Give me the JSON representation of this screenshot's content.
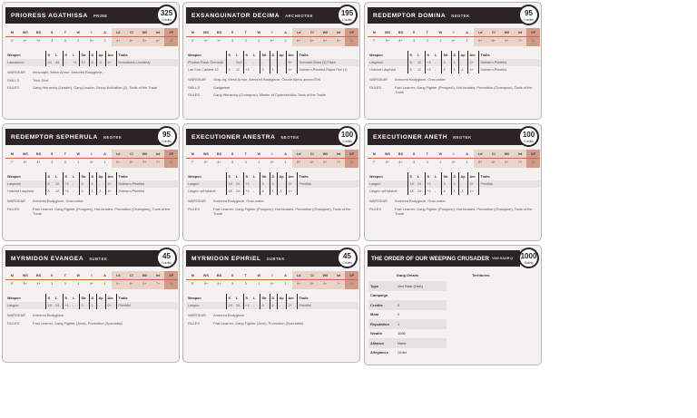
{
  "colors": {
    "header": "#2c2324",
    "stat_shade": "#ecd3c9",
    "xp_shade": "#cf9a86",
    "accent_line": "#c5684f"
  },
  "stat_labels": [
    "M",
    "WS",
    "BS",
    "S",
    "T",
    "W",
    "I",
    "A",
    "Ld",
    "Cl",
    "Wil",
    "Int",
    "XP"
  ],
  "weapon_headers": [
    "Weapon",
    "S",
    "L",
    "S",
    "L",
    "Str",
    "D",
    "Ap",
    "Am",
    "Traits"
  ],
  "credits_label": "Credits",
  "fighters": [
    {
      "name": "PRIORESS AGATHISSA",
      "type": "PRIME",
      "credits": "325",
      "stats": [
        "4\"",
        "4+",
        "3+",
        "3",
        "3",
        "2",
        "5+",
        "2",
        "4+",
        "5+",
        "5+",
        "4+",
        "0"
      ],
      "weapons": [
        [
          "Lascannon",
          "24",
          "48",
          "-",
          "+1",
          "10",
          "3",
          "-3",
          "4+",
          "Knockback,Unwieldy"
        ]
      ],
      "info": [
        {
          "k": "WARGEAR",
          "v": "Infra-sight, Mesh Armor, Armored Bodyglove,"
        },
        {
          "k": "SKILLS",
          "v": "Trick Shot"
        },
        {
          "k": "RULES",
          "v": "Gang Hierarchy (Leader), Gang Leader, Group Activation (2), Tools of the Trade"
        }
      ]
    },
    {
      "name": "EXSANGUINATOR DECIMA",
      "type": "ARCHEOTEK",
      "credits": "195",
      "stats": [
        "4\"",
        "4+",
        "3+",
        "3",
        "3",
        "2",
        "5+",
        "2",
        "6+",
        "6+",
        "6+",
        "5+",
        "0"
      ],
      "weapons": [
        [
          "Phobos Flash Grenade",
          "-",
          "Sx3",
          "-",
          "-",
          "-",
          "-",
          "-",
          "5+",
          "Grenade,Blast (3),Flash"
        ],
        [
          "Las Sub-Carbine x2",
          "4",
          "12",
          "+1",
          "-",
          "3",
          "1",
          "-",
          "4+",
          "Sidearm,Plentiful,Rapid Fire (1)"
        ]
      ],
      "info": [
        {
          "k": "WARGEAR",
          "v": "Grap-rig, Mesh Armor, Armored Bodyglove, Ocular Alpha archeoTEK"
        },
        {
          "k": "SKILLS",
          "v": "Gadgeteer"
        },
        {
          "k": "RULES",
          "v": "Gang Hierarchy (Champion), Master of Cyberteknika, Tools of the Trade"
        }
      ]
    },
    {
      "name": "REDEMPTOR DOMINA",
      "type": "NEOTEK",
      "credits": "95",
      "stats": [
        "7\"",
        "5+",
        "4+",
        "3",
        "3",
        "1",
        "4+",
        "1",
        "9+",
        "8+",
        "9+",
        "7+",
        "0"
      ],
      "weapons": [
        [
          "Laspistol",
          "8",
          "12",
          "+1",
          "-",
          "3",
          "1",
          "-",
          "2+",
          "Sidearm,Plentiful"
        ],
        [
          "Hotshot Laspistol",
          "8",
          "12",
          "+1",
          "-",
          "4",
          "1",
          "-1",
          "4+",
          "Sidearm,Plentiful"
        ]
      ],
      "info": [
        {
          "k": "WARGEAR",
          "v": "Armored Bodyglove, Grav-cutter"
        },
        {
          "k": "RULES",
          "v": "Fast Learner, Gang Fighter (Prospect), Hot-headed, Promotion (Champion), Tools of the Trade"
        }
      ]
    },
    {
      "name": "REDEMPTOR SEPHERULA",
      "type": "NEOTEK",
      "credits": "95",
      "stats": [
        "7\"",
        "5+",
        "4+",
        "3",
        "3",
        "1",
        "4+",
        "1",
        "9+",
        "8+",
        "9+",
        "7+",
        "0"
      ],
      "weapons": [
        [
          "Laspistol",
          "8",
          "12",
          "+1",
          "-",
          "3",
          "1",
          "-",
          "2+",
          "Sidearm,Plentiful"
        ],
        [
          "Hotshot Laspistol",
          "8",
          "12",
          "+1",
          "-",
          "4",
          "1",
          "-1",
          "4+",
          "Sidearm,Plentiful"
        ]
      ],
      "info": [
        {
          "k": "WARGEAR",
          "v": "Armored Bodyglove, Grav-cutter"
        },
        {
          "k": "RULES",
          "v": "Fast Learner, Gang Fighter (Prospect), Hot-headed, Promotion (Champion), Tools of the Trade"
        }
      ]
    },
    {
      "name": "EXECUTIONER ANESTRA",
      "type": "NEOTEK",
      "credits": "100",
      "stats": [
        "7\"",
        "5+",
        "4+",
        "3",
        "3",
        "1",
        "4+",
        "1",
        "9+",
        "8+",
        "9+",
        "7+",
        "0"
      ],
      "weapons": [
        [
          "Lasgun",
          "18",
          "24",
          "+1",
          "-",
          "3",
          "1",
          "-",
          "2+",
          "Plentiful"
        ],
        [
          "Lasgun w/Hotshot",
          "18",
          "24",
          "+1",
          "-",
          "4",
          "1",
          "-1",
          "4+",
          ""
        ]
      ],
      "info": [
        {
          "k": "WARGEAR",
          "v": "Armored Bodyglove, Grav-cutter"
        },
        {
          "k": "RULES",
          "v": "Fast Learner, Gang Fighter (Prospect), Hot-headed, Promotion (Champion), Tools of the Trade"
        }
      ]
    },
    {
      "name": "EXECUTIONER ANETH",
      "type": "NEOTEK",
      "credits": "100",
      "stats": [
        "7\"",
        "5+",
        "4+",
        "3",
        "3",
        "1",
        "4+",
        "1",
        "9+",
        "8+",
        "9+",
        "7+",
        "0"
      ],
      "weapons": [
        [
          "Lasgun",
          "18",
          "24",
          "+1",
          "-",
          "3",
          "1",
          "-",
          "2+",
          "Plentiful"
        ],
        [
          "Lasgun w/Hotshot",
          "18",
          "24",
          "+1",
          "-",
          "4",
          "1",
          "-1",
          "4+",
          ""
        ]
      ],
      "info": [
        {
          "k": "WARGEAR",
          "v": "Armored Bodyglove, Grav-cutter"
        },
        {
          "k": "RULES",
          "v": "Fast Learner, Gang Fighter (Prospect), Hot-headed, Promotion (Champion), Tools of the Trade"
        }
      ]
    },
    {
      "name": "MYRMIDON EVANGEA",
      "type": "SUBTEK",
      "credits": "45",
      "stats": [
        "5\"",
        "5+",
        "4+",
        "3",
        "3",
        "1",
        "4+",
        "1",
        "9+",
        "8+",
        "9+",
        "7+",
        "0"
      ],
      "weapons": [
        [
          "Lasgun",
          "18",
          "24",
          "+1",
          "-",
          "3",
          "1",
          "-",
          "2+",
          "Plentiful"
        ]
      ],
      "info": [
        {
          "k": "WARGEAR",
          "v": "Armored Bodyglove"
        },
        {
          "k": "RULES",
          "v": "Fast Learner, Gang Fighter (Juve), Promotion (Specialist)"
        }
      ]
    },
    {
      "name": "MYRMIDON EPHRIEL",
      "type": "SUBTEK",
      "credits": "45",
      "stats": [
        "5\"",
        "5+",
        "4+",
        "3",
        "3",
        "1",
        "4+",
        "1",
        "9+",
        "8+",
        "9+",
        "7+",
        "0"
      ],
      "weapons": [
        [
          "Lasgun",
          "18",
          "24",
          "+1",
          "-",
          "3",
          "1",
          "-",
          "2+",
          "Plentiful"
        ]
      ],
      "info": [
        {
          "k": "WARGEAR",
          "v": "Armored Bodyglove"
        },
        {
          "k": "RULES",
          "v": "Fast Learner, Gang Fighter (Juve), Promotion (Specialist)"
        }
      ]
    }
  ],
  "gang": {
    "name": "THE ORDER OF OUR WEEPING CRUSADER",
    "type": "VAN SAAR (I",
    "rating": "1000",
    "rating_label": "Rating",
    "details_title": "Gang Details",
    "territories_title": "Territories",
    "details": [
      {
        "k": "Type",
        "v": "Van Saar (HoA)"
      },
      {
        "k": "Campaign",
        "v": ""
      },
      {
        "k": "Credits",
        "v": "0"
      },
      {
        "k": "Meat",
        "v": "0"
      },
      {
        "k": "Reputation",
        "v": "1"
      },
      {
        "k": "Wealth",
        "v": "1080"
      },
      {
        "k": "Alliance",
        "v": "None"
      },
      {
        "k": "Allegiance",
        "v": "Order"
      }
    ]
  }
}
